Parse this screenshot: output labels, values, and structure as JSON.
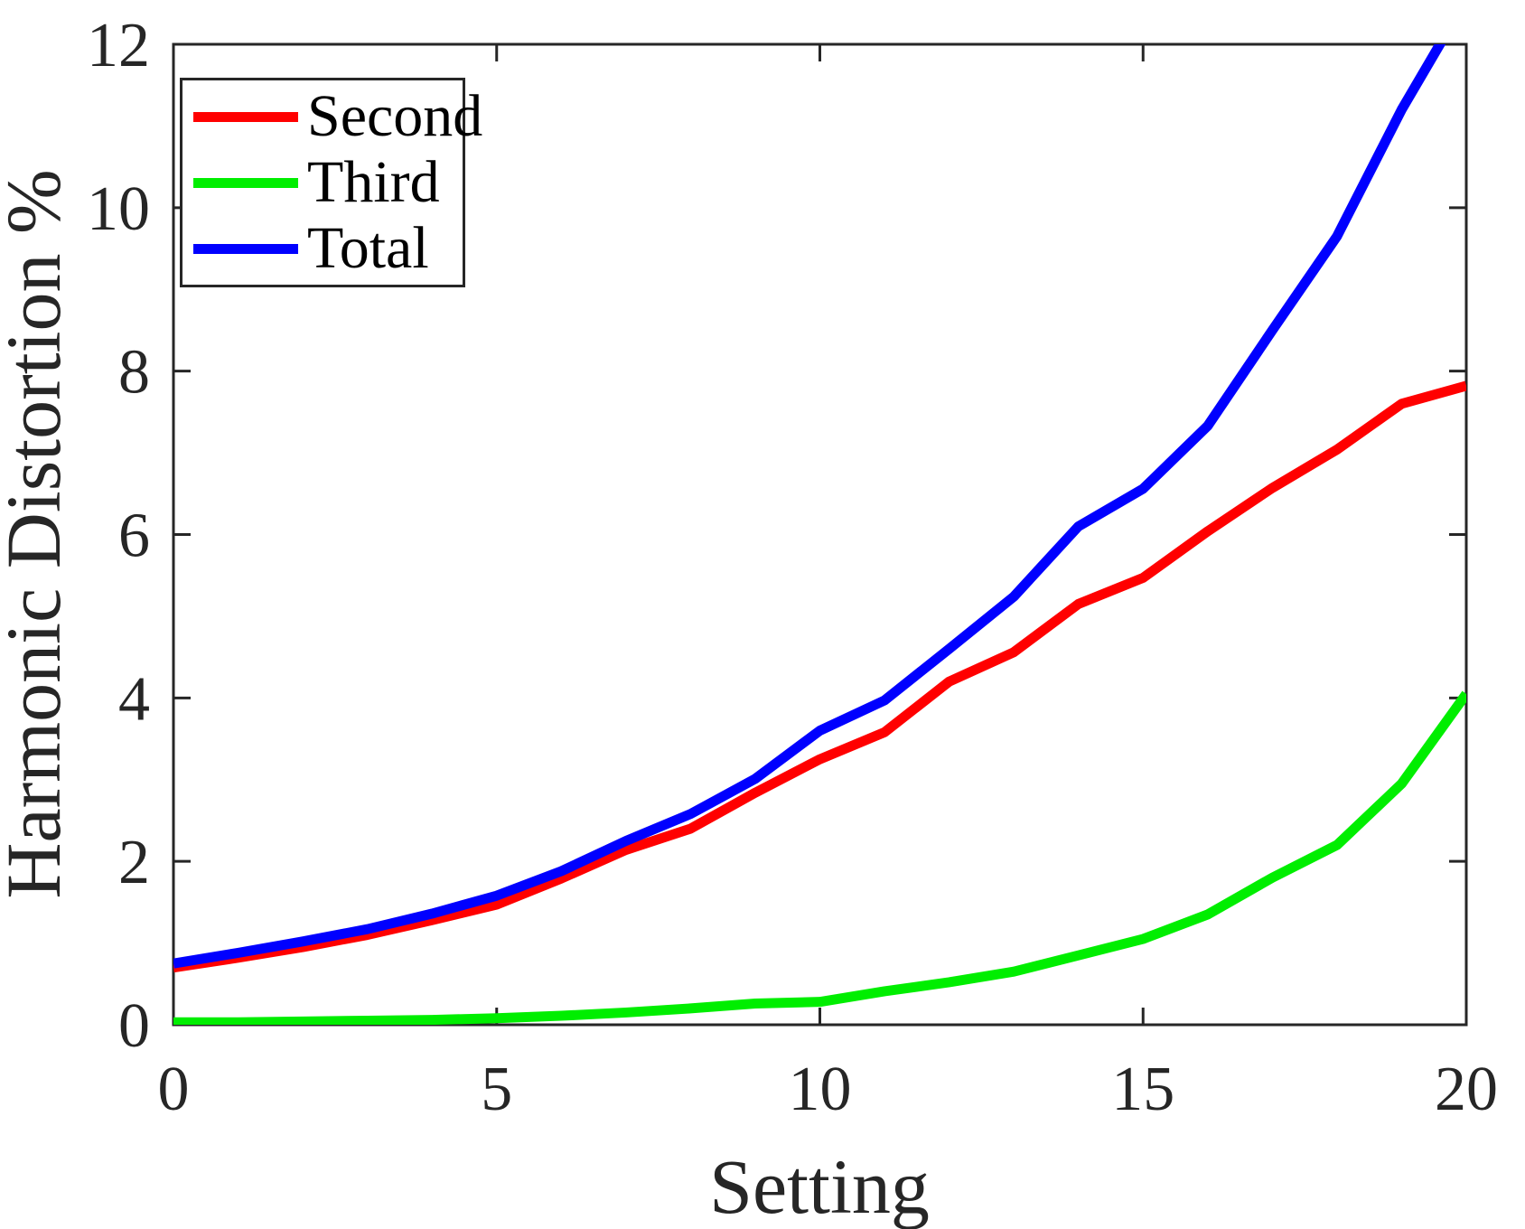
{
  "chart_data": {
    "type": "line",
    "title": "",
    "xlabel": "Setting",
    "ylabel": "Harmonic Distortion %",
    "xlim": [
      0,
      20
    ],
    "ylim": [
      0,
      12
    ],
    "x_ticks": [
      "0",
      "5",
      "10",
      "15",
      "20"
    ],
    "x_tick_values": [
      0,
      5,
      10,
      15,
      20
    ],
    "y_ticks": [
      "0",
      "2",
      "4",
      "6",
      "8",
      "10",
      "12"
    ],
    "y_tick_values": [
      0,
      2,
      4,
      6,
      8,
      10,
      12
    ],
    "grid": "off",
    "legend_position": "top-left",
    "x": [
      0,
      1,
      2,
      3,
      4,
      5,
      6,
      7,
      8,
      9,
      10,
      11,
      12,
      13,
      14,
      15,
      16,
      17,
      18,
      19,
      20
    ],
    "series": [
      {
        "name": "Second",
        "color": "#ff0000",
        "values": [
          0.7,
          0.82,
          0.95,
          1.1,
          1.28,
          1.47,
          1.79,
          2.14,
          2.4,
          2.84,
          3.25,
          3.58,
          4.2,
          4.56,
          5.15,
          5.47,
          6.04,
          6.57,
          7.04,
          7.6,
          7.82
        ]
      },
      {
        "name": "Third",
        "color": "#00ee00",
        "values": [
          0.03,
          0.03,
          0.04,
          0.05,
          0.06,
          0.08,
          0.11,
          0.15,
          0.2,
          0.26,
          0.28,
          0.41,
          0.52,
          0.65,
          0.85,
          1.05,
          1.35,
          1.8,
          2.2,
          2.95,
          4.05
        ]
      },
      {
        "name": "Total",
        "color": "#0000ff",
        "values": [
          0.75,
          0.88,
          1.02,
          1.17,
          1.36,
          1.58,
          1.88,
          2.25,
          2.58,
          3.01,
          3.6,
          3.97,
          4.6,
          5.24,
          6.1,
          6.56,
          7.33,
          8.5,
          9.65,
          11.2,
          12.55
        ]
      }
    ]
  }
}
